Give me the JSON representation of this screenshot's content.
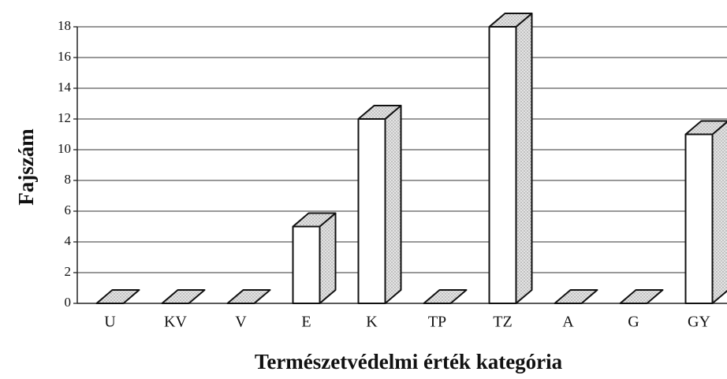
{
  "chart_data": {
    "type": "bar3d",
    "x_label": "Természetvédelmi érték kategória",
    "y_label": "Fajszám",
    "categories": [
      "U",
      "KV",
      "V",
      "E",
      "K",
      "TP",
      "TZ",
      "A",
      "G",
      "GY"
    ],
    "values": [
      0,
      0,
      0,
      5,
      12,
      0,
      18,
      0,
      0,
      11
    ],
    "color": "#ffffff",
    "ylim": [
      0,
      18
    ],
    "yticks": [
      0,
      2,
      4,
      6,
      8,
      10,
      12,
      14,
      16,
      18
    ],
    "grid": true
  }
}
